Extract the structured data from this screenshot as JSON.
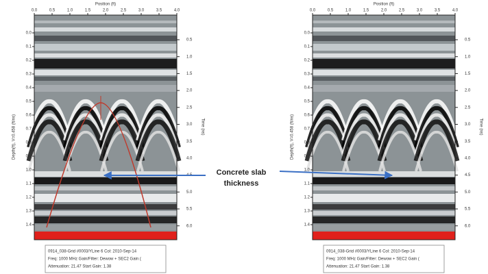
{
  "panels": [
    {
      "top_axis_title": "Position (ft)",
      "x_ticks": [
        "0.0",
        "0.5",
        "1.0",
        "1.5",
        "2.0",
        "2.5",
        "3.0",
        "3.5",
        "4.0"
      ],
      "left_axis_title": "Depth(ft), V=0.458 (ft/ns)",
      "depth_ticks": [
        "0.0",
        "0.1",
        "0.2",
        "0.3",
        "0.4",
        "0.5",
        "0.6",
        "0.7",
        "0.8",
        "0.9",
        "1.0",
        "1.1",
        "1.2",
        "1.3",
        "1.4"
      ],
      "right_axis_title": "Time (ns)",
      "time_ticks": [
        "0.5",
        "1.0",
        "1.5",
        "2.0",
        "2.5",
        "3.0",
        "3.5",
        "4.0",
        "4.5",
        "5.0",
        "5.5",
        "6.0"
      ],
      "caption": [
        "0914_038-Grid #0003/YLine 6  Col: 2010-Sep-14",
        "Freq: 1000 MHz  Gain/Filter: Dewow + SEC2 Gain (",
        "Attenuation: 21.47  Start Gain: 1.38"
      ]
    },
    {
      "top_axis_title": "Position (ft)",
      "x_ticks": [
        "0.0",
        "0.5",
        "1.0",
        "1.5",
        "2.0",
        "2.5",
        "3.0",
        "3.5",
        "4.0"
      ],
      "left_axis_title": "Depth(ft), V=0.458 (ft/ns)",
      "depth_ticks": [
        "0.0",
        "0.1",
        "0.2",
        "0.3",
        "0.4",
        "0.5",
        "0.6",
        "0.7",
        "0.8",
        "0.9",
        "1.0",
        "1.1",
        "1.2",
        "1.3",
        "1.4"
      ],
      "right_axis_title": "Time (ns)",
      "time_ticks": [
        "0.5",
        "1.0",
        "1.5",
        "2.0",
        "2.5",
        "3.0",
        "3.5",
        "4.0",
        "4.5",
        "5.0",
        "5.5",
        "6.0"
      ],
      "caption": [
        "0914_038-Grid #0003/YLine 6  Col: 2010-Sep-14",
        "Freq: 1000 MHz  Gain/Filter: Dewow + SEC2 Gain (",
        "Attenuation: 21.47  Start Gain: 1.38"
      ]
    }
  ],
  "annotation": [
    "Concrete slab",
    "thickness"
  ]
}
